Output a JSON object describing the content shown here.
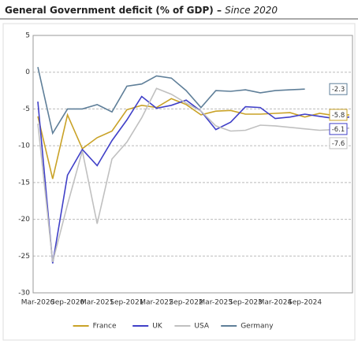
{
  "chart_data": {
    "type": "line",
    "title": "General Government deficit (% of GDP) –",
    "subtitle": "Since 2020",
    "categories": [
      "Mar-2020",
      null,
      "Sep-2020",
      null,
      "Mar-2021",
      null,
      "Sep-2021",
      null,
      "Mar-2022",
      null,
      "Sep-2022",
      null,
      "Mar-2023",
      null,
      "Sep-2023",
      null,
      "Mar-2024",
      null,
      "Sep-2024",
      null,
      null,
      null
    ],
    "series": [
      {
        "name": "France",
        "color": "#c9a227",
        "values": [
          -6.0,
          -14.5,
          -5.8,
          -10.4,
          -8.9,
          -8.0,
          -5.1,
          -4.5,
          -4.8,
          -3.6,
          -4.4,
          -5.8,
          -5.3,
          -5.2,
          -5.7,
          -5.7,
          -5.6,
          -5.5,
          -6.1,
          -5.6,
          -5.9,
          -5.8
        ]
      },
      {
        "name": "UK",
        "color": "#4040c8",
        "values": [
          -4.0,
          -26.0,
          -14.0,
          -10.5,
          -12.7,
          -9.3,
          -6.5,
          -3.3,
          -4.9,
          -4.5,
          -3.8,
          -5.3,
          -7.8,
          -6.8,
          -4.7,
          -4.8,
          -6.3,
          -6.1,
          -5.7,
          -6.0,
          -6.3,
          -6.1
        ]
      },
      {
        "name": "USA",
        "color": "#c0c0c0",
        "values": [
          -7.0,
          -25.8,
          -18.0,
          -10.7,
          -20.6,
          -11.8,
          -9.5,
          -6.2,
          -2.2,
          -3.0,
          -4.2,
          -5.3,
          -7.3,
          -8.0,
          -7.9,
          -7.2,
          -7.3,
          -7.5,
          -7.7,
          -7.9,
          -7.8,
          -7.6
        ]
      },
      {
        "name": "Germany",
        "color": "#5f7f99",
        "values": [
          0.7,
          -8.3,
          -5.0,
          -5.0,
          -4.4,
          -5.4,
          -1.9,
          -1.6,
          -0.5,
          -0.8,
          -2.5,
          -4.8,
          -2.5,
          -2.6,
          -2.4,
          -2.8,
          -2.5,
          -2.4,
          -2.3,
          null,
          null,
          null
        ]
      }
    ],
    "ylim": [
      -30,
      5
    ],
    "yticks": [
      5,
      0,
      -5,
      -10,
      -15,
      -20,
      -25,
      -30
    ],
    "grid": true,
    "legend": "bottom"
  }
}
